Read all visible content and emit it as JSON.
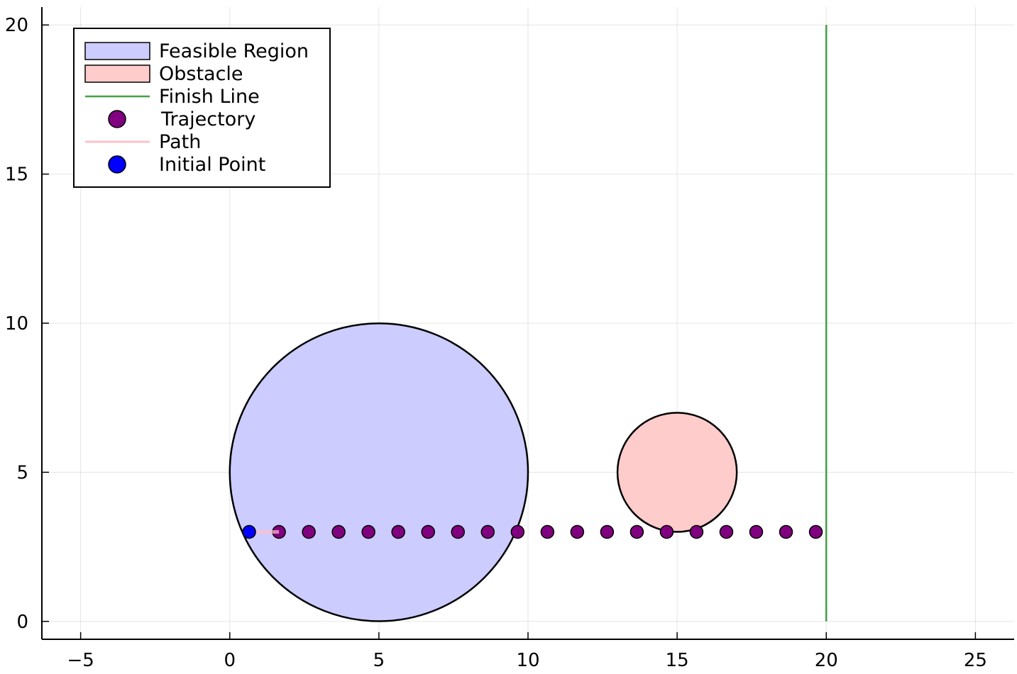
{
  "chart_data": {
    "type": "scatter",
    "title": "",
    "xlabel": "",
    "ylabel": "",
    "xlim": [
      -6.3,
      26.3
    ],
    "ylim": [
      -0.6,
      20.6
    ],
    "xticks": [
      -5,
      0,
      5,
      10,
      15,
      20,
      25
    ],
    "xtick_labels": [
      "−5",
      "0",
      "5",
      "10",
      "15",
      "20",
      "25"
    ],
    "yticks": [
      0,
      5,
      10,
      15,
      20
    ],
    "ytick_labels": [
      "0",
      "5",
      "10",
      "15",
      "20"
    ],
    "grid": true,
    "legend_position": "top-left",
    "series": [
      {
        "name": "Feasible Region",
        "kind": "circle",
        "center": [
          5,
          5
        ],
        "radius": 5,
        "color": "#ccccff"
      },
      {
        "name": "Obstacle",
        "kind": "circle",
        "center": [
          15,
          5
        ],
        "radius": 2,
        "color": "#ffcccc"
      },
      {
        "name": "Finish Line",
        "kind": "line",
        "x": [
          20,
          20
        ],
        "y": [
          0,
          20
        ],
        "color": "#44a047"
      },
      {
        "name": "Trajectory",
        "kind": "points",
        "x": [
          1.65,
          2.65,
          3.65,
          4.65,
          5.65,
          6.65,
          7.65,
          8.65,
          9.65,
          10.65,
          11.65,
          12.65,
          13.65,
          14.65,
          15.65,
          16.65,
          17.65,
          18.65,
          19.65
        ],
        "y": [
          3,
          3,
          3,
          3,
          3,
          3,
          3,
          3,
          3,
          3,
          3,
          3,
          3,
          3,
          3,
          3,
          3,
          3,
          3
        ],
        "color": "#800080"
      },
      {
        "name": "Path",
        "kind": "line",
        "x": [
          0.65,
          1.65
        ],
        "y": [
          3,
          3
        ],
        "color": "#ffc0cb"
      },
      {
        "name": "Initial Point",
        "kind": "points",
        "x": [
          0.65
        ],
        "y": [
          3
        ],
        "color": "#0000ff"
      }
    ]
  }
}
